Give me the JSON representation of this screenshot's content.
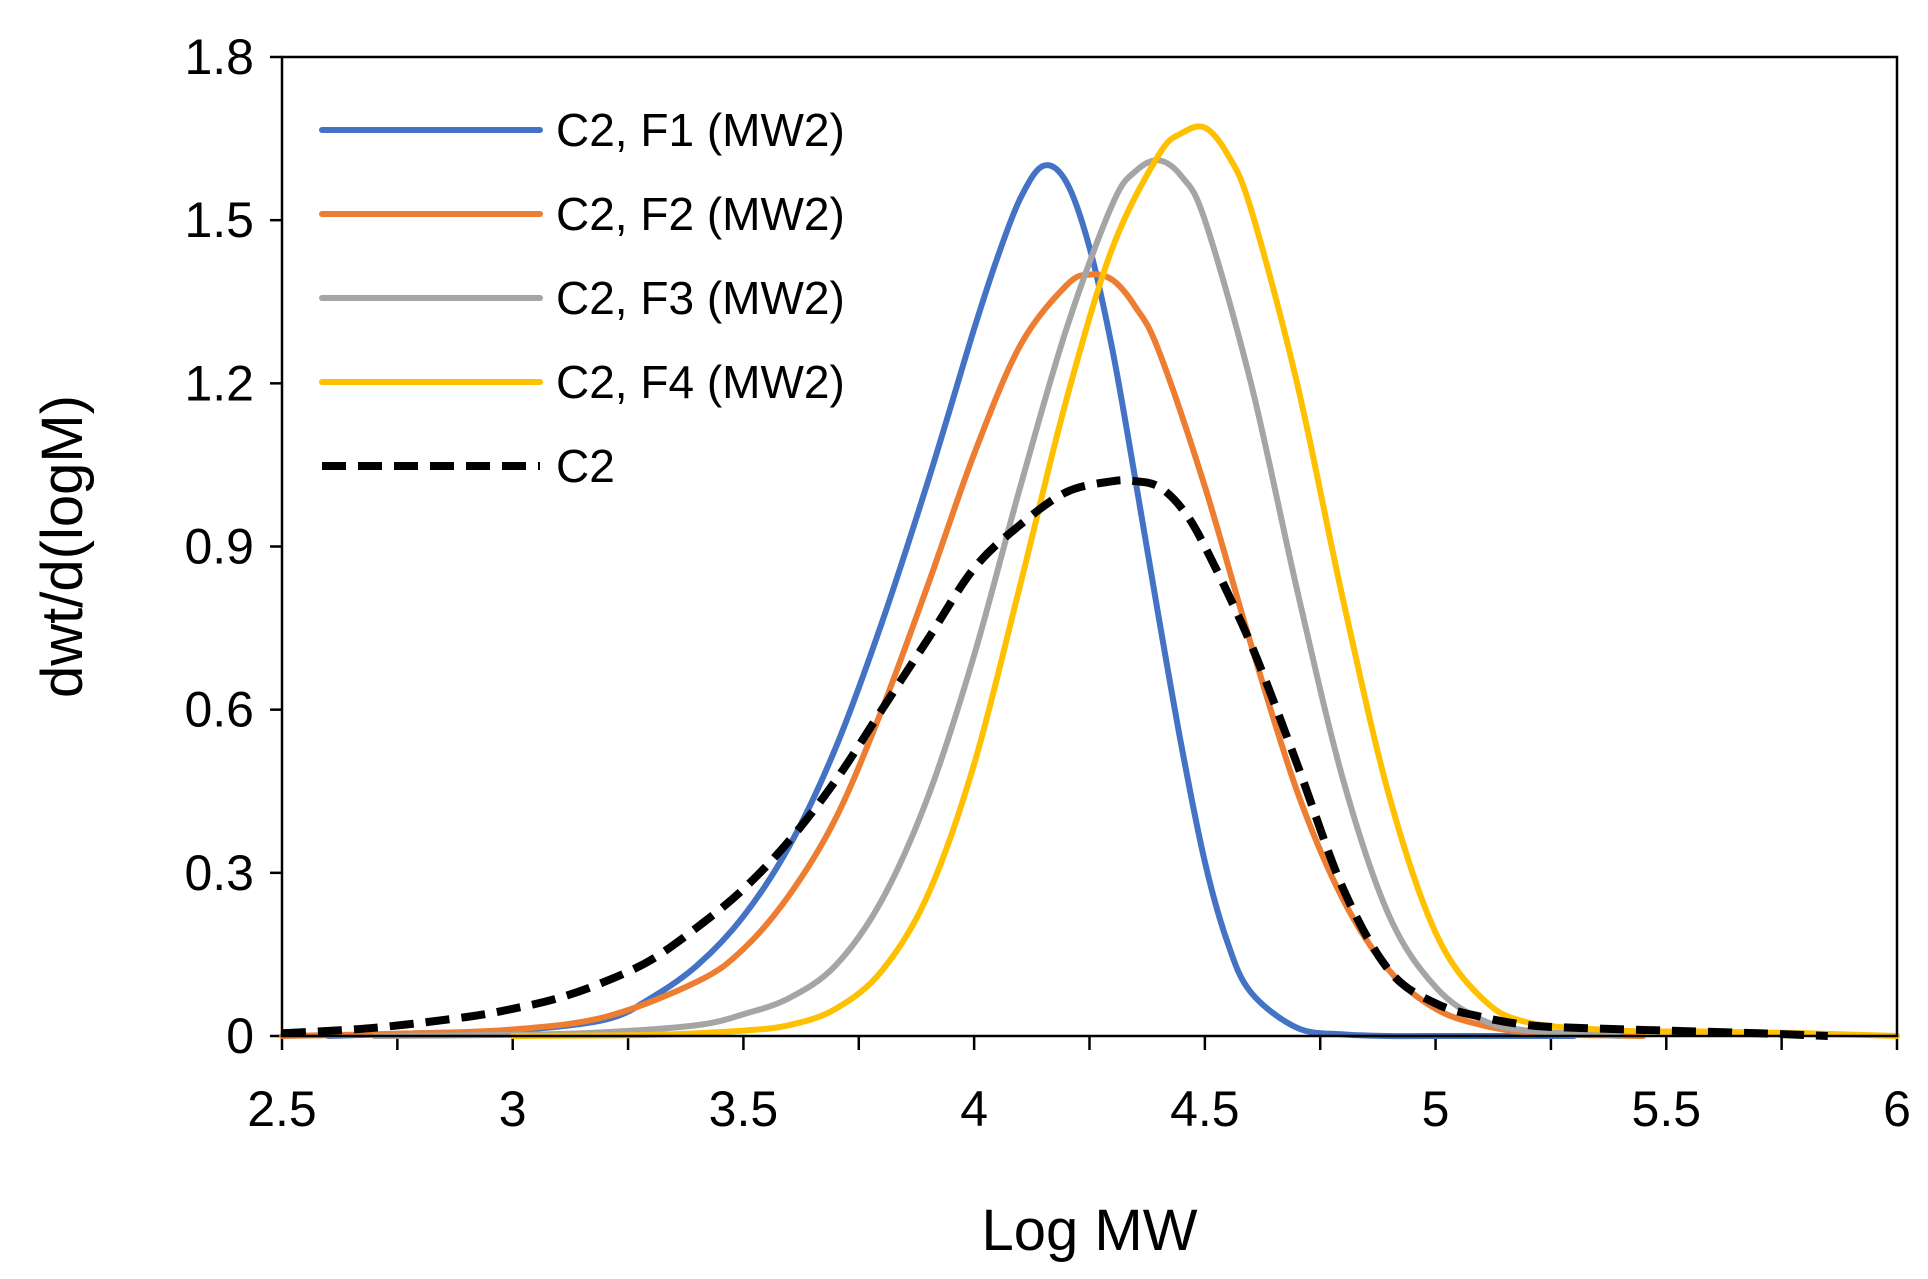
{
  "chart_data": {
    "type": "line",
    "title": "",
    "xlabel": "Log MW",
    "ylabel": "dwt/d(logM)",
    "xlim": [
      2.5,
      6
    ],
    "ylim": [
      0,
      1.8
    ],
    "xticks": [
      2.5,
      3,
      3.5,
      4,
      4.5,
      5,
      5.5,
      6
    ],
    "xtick_labels": [
      "2.5",
      "3",
      "3.5",
      "4",
      "4.5",
      "5",
      "5.5",
      "6"
    ],
    "yticks": [
      0,
      0.3,
      0.6,
      0.9,
      1.2,
      1.5,
      1.8
    ],
    "ytick_labels": [
      "0",
      "0.3",
      "0.6",
      "0.9",
      "1.2",
      "1.5",
      "1.8"
    ],
    "grid": false,
    "legend_position": "top-left",
    "series": [
      {
        "name": "C2, F1 (MW2)",
        "color": "#4472C4",
        "style": "solid",
        "x": [
          2.6,
          2.8,
          3.0,
          3.2,
          3.3,
          3.4,
          3.5,
          3.6,
          3.7,
          3.8,
          3.9,
          4.0,
          4.05,
          4.1,
          4.15,
          4.2,
          4.25,
          4.3,
          4.35,
          4.4,
          4.45,
          4.5,
          4.55,
          4.6,
          4.7,
          4.8,
          4.9,
          5.0,
          5.3
        ],
        "y": [
          0.0,
          0.005,
          0.01,
          0.03,
          0.07,
          0.13,
          0.22,
          0.35,
          0.53,
          0.76,
          1.02,
          1.3,
          1.43,
          1.54,
          1.6,
          1.57,
          1.45,
          1.26,
          1.02,
          0.77,
          0.53,
          0.32,
          0.17,
          0.08,
          0.015,
          0.003,
          0.0,
          0.0,
          0.0
        ]
      },
      {
        "name": "C2, F2 (MW2)",
        "color": "#ED7D31",
        "style": "solid",
        "x": [
          2.5,
          2.8,
          3.0,
          3.2,
          3.4,
          3.5,
          3.6,
          3.7,
          3.8,
          3.9,
          4.0,
          4.1,
          4.2,
          4.25,
          4.3,
          4.35,
          4.4,
          4.5,
          4.6,
          4.7,
          4.8,
          4.9,
          5.0,
          5.1,
          5.2,
          5.3,
          5.45
        ],
        "y": [
          0.0,
          0.005,
          0.012,
          0.035,
          0.1,
          0.16,
          0.26,
          0.4,
          0.6,
          0.83,
          1.07,
          1.27,
          1.38,
          1.4,
          1.39,
          1.34,
          1.26,
          1.01,
          0.72,
          0.45,
          0.25,
          0.12,
          0.05,
          0.02,
          0.006,
          0.002,
          0.0
        ]
      },
      {
        "name": "C2, F3 (MW2)",
        "color": "#A5A5A5",
        "style": "solid",
        "x": [
          2.7,
          3.0,
          3.2,
          3.4,
          3.5,
          3.6,
          3.7,
          3.8,
          3.9,
          4.0,
          4.1,
          4.2,
          4.3,
          4.35,
          4.4,
          4.45,
          4.5,
          4.6,
          4.7,
          4.8,
          4.9,
          5.0,
          5.1,
          5.2,
          5.4
        ],
        "y": [
          0.0,
          0.002,
          0.007,
          0.02,
          0.04,
          0.07,
          0.13,
          0.25,
          0.44,
          0.7,
          1.01,
          1.3,
          1.53,
          1.59,
          1.61,
          1.58,
          1.5,
          1.2,
          0.82,
          0.47,
          0.22,
          0.09,
          0.03,
          0.01,
          0.0
        ]
      },
      {
        "name": "C2, F4 (MW2)",
        "color": "#FFC000",
        "style": "solid",
        "x": [
          3.0,
          3.3,
          3.5,
          3.6,
          3.7,
          3.8,
          3.9,
          4.0,
          4.1,
          4.2,
          4.3,
          4.4,
          4.45,
          4.5,
          4.55,
          4.6,
          4.7,
          4.8,
          4.9,
          5.0,
          5.1,
          5.2,
          5.4,
          5.6,
          5.8,
          6.0
        ],
        "y": [
          0.0,
          0.002,
          0.01,
          0.02,
          0.05,
          0.12,
          0.26,
          0.5,
          0.83,
          1.17,
          1.45,
          1.62,
          1.66,
          1.67,
          1.62,
          1.52,
          1.2,
          0.8,
          0.44,
          0.19,
          0.07,
          0.025,
          0.01,
          0.008,
          0.005,
          0.0
        ]
      },
      {
        "name": "C2",
        "color": "#000000",
        "style": "dashed",
        "x": [
          2.5,
          2.7,
          2.9,
          3.0,
          3.1,
          3.2,
          3.3,
          3.4,
          3.5,
          3.6,
          3.7,
          3.8,
          3.9,
          4.0,
          4.1,
          4.2,
          4.3,
          4.35,
          4.4,
          4.45,
          4.5,
          4.6,
          4.7,
          4.8,
          4.9,
          5.0,
          5.1,
          5.2,
          5.3,
          5.5,
          5.7,
          5.85
        ],
        "y": [
          0.005,
          0.015,
          0.035,
          0.05,
          0.07,
          0.1,
          0.14,
          0.2,
          0.27,
          0.36,
          0.47,
          0.6,
          0.73,
          0.86,
          0.94,
          1.0,
          1.02,
          1.02,
          1.01,
          0.97,
          0.9,
          0.72,
          0.5,
          0.27,
          0.12,
          0.06,
          0.035,
          0.02,
          0.015,
          0.01,
          0.005,
          0.0
        ]
      }
    ]
  }
}
